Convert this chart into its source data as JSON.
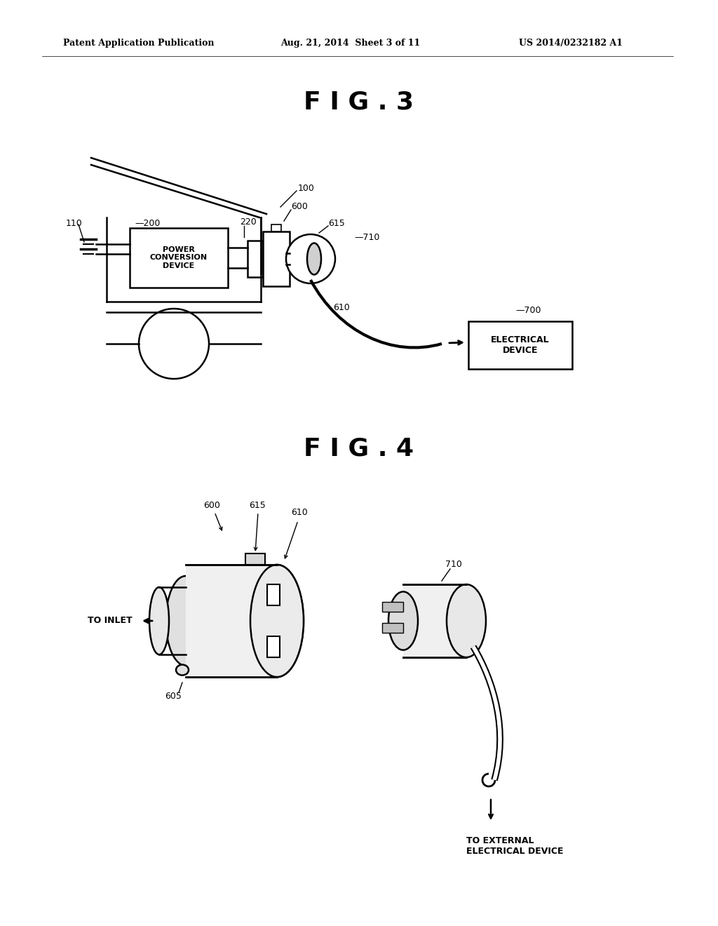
{
  "bg_color": "#ffffff",
  "header_left": "Patent Application Publication",
  "header_mid": "Aug. 21, 2014  Sheet 3 of 11",
  "header_right": "US 2014/0232182 A1",
  "fig3_title": "F I G . 3",
  "fig4_title": "F I G . 4"
}
